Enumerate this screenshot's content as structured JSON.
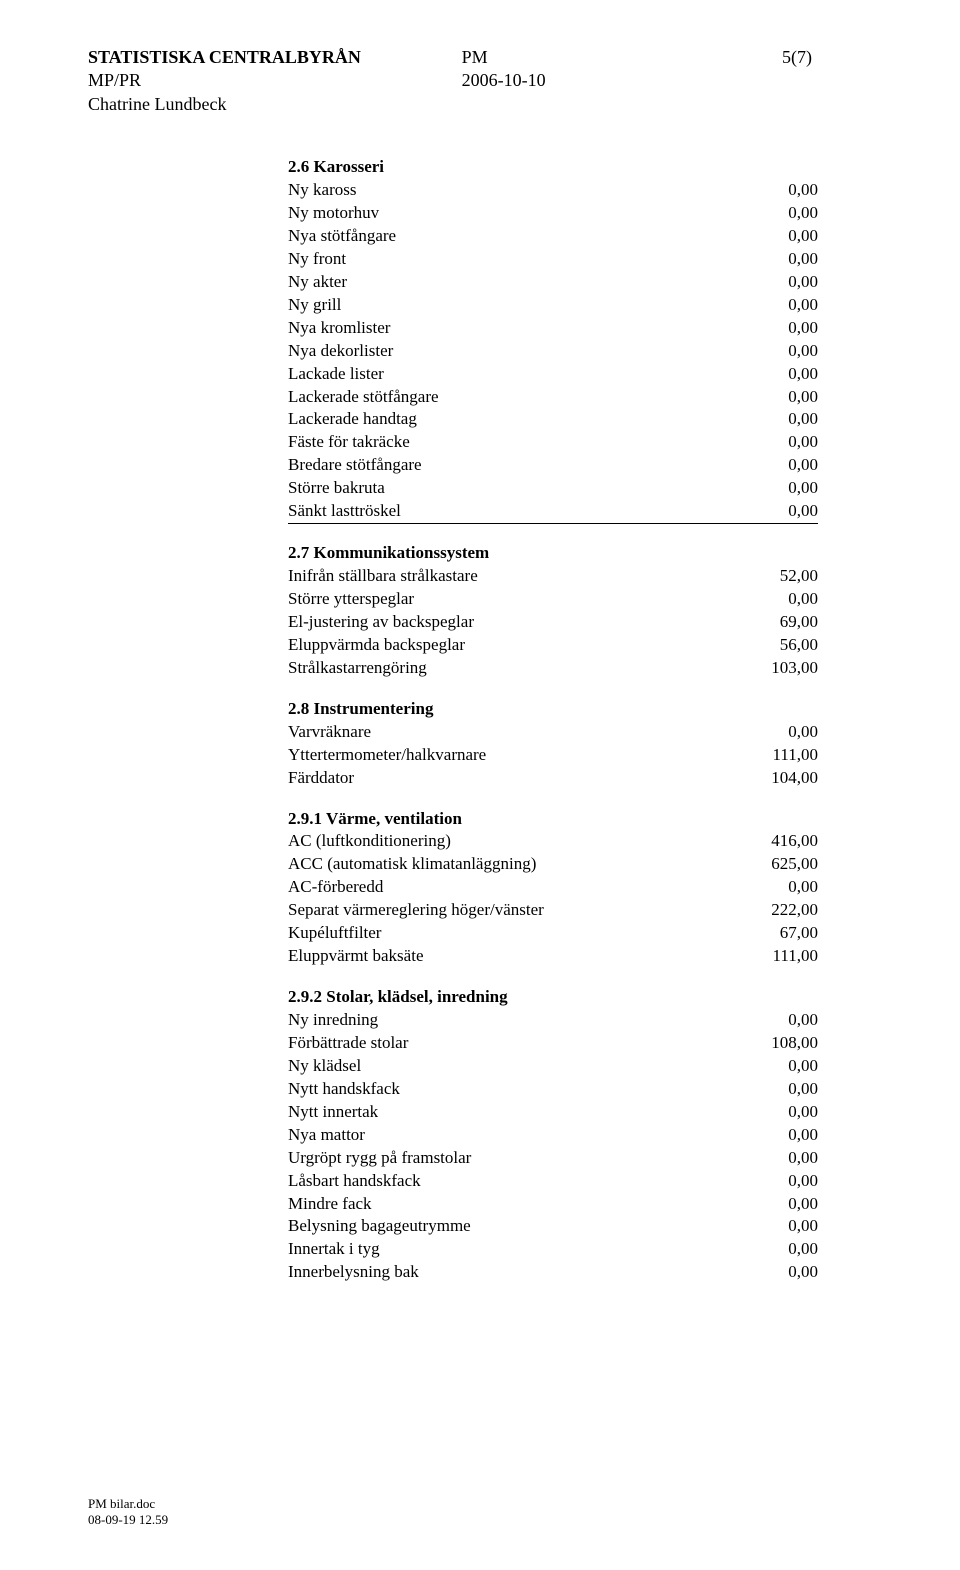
{
  "header": {
    "org": "STATISTISKA CENTRALBYRÅN",
    "dept": "MP/PR",
    "author": "Chatrine Lundbeck",
    "doc_type": "PM",
    "date": "2006-10-10",
    "page": "5(7)"
  },
  "sections": [
    {
      "title": "2.6  Karosseri",
      "rows": [
        {
          "label": "Ny kaross",
          "value": "0,00"
        },
        {
          "label": "Ny motorhuv",
          "value": "0,00"
        },
        {
          "label": "Nya stötfångare",
          "value": "0,00"
        },
        {
          "label": "Ny front",
          "value": "0,00"
        },
        {
          "label": "Ny akter",
          "value": "0,00"
        },
        {
          "label": "Ny grill",
          "value": "0,00"
        },
        {
          "label": "Nya kromlister",
          "value": "0,00"
        },
        {
          "label": "Nya dekorlister",
          "value": "0,00"
        },
        {
          "label": "Lackade lister",
          "value": "0,00"
        },
        {
          "label": "Lackerade stötfångare",
          "value": "0,00"
        },
        {
          "label": "Lackerade handtag",
          "value": "0,00"
        },
        {
          "label": "Fäste för takräcke",
          "value": "0,00"
        },
        {
          "label": "Bredare stötfångare",
          "value": "0,00"
        },
        {
          "label": "Större bakruta",
          "value": "0,00"
        },
        {
          "label": "Sänkt lasttröskel",
          "value": "0,00",
          "underline": true
        }
      ]
    },
    {
      "title": "2.7  Kommunikationssystem",
      "rows": [
        {
          "label": "Inifrån ställbara strålkastare",
          "value": "52,00"
        },
        {
          "label": "Större ytterspeglar",
          "value": "0,00"
        },
        {
          "label": "El-justering av backspeglar",
          "value": "69,00"
        },
        {
          "label": "Eluppvärmda backspeglar",
          "value": "56,00"
        },
        {
          "label": "Strålkastarrengöring",
          "value": "103,00"
        }
      ]
    },
    {
      "title": "2.8  Instrumentering",
      "rows": [
        {
          "label": "Varvräknare",
          "value": "0,00"
        },
        {
          "label": "Yttertermometer/halkvarnare",
          "value": "111,00"
        },
        {
          "label": "Färddator",
          "value": "104,00"
        }
      ]
    },
    {
      "title": "2.9.1 Värme, ventilation",
      "rows": [
        {
          "label": "AC (luftkonditionering)",
          "value": "416,00"
        },
        {
          "label": "ACC (automatisk klimatanläggning)",
          "value": "625,00"
        },
        {
          "label": "AC-förberedd",
          "value": "0,00"
        },
        {
          "label": "Separat värmereglering höger/vänster",
          "value": "222,00"
        },
        {
          "label": "Kupéluftfilter",
          "value": "67,00"
        },
        {
          "label": "Eluppvärmt baksäte",
          "value": "111,00"
        }
      ]
    },
    {
      "title": "2.9.2 Stolar, klädsel, inredning",
      "rows": [
        {
          "label": "Ny inredning",
          "value": "0,00"
        },
        {
          "label": "Förbättrade stolar",
          "value": "108,00"
        },
        {
          "label": "Ny klädsel",
          "value": "0,00"
        },
        {
          "label": "Nytt handskfack",
          "value": "0,00"
        },
        {
          "label": "Nytt innertak",
          "value": "0,00"
        },
        {
          "label": "Nya mattor",
          "value": "0,00"
        },
        {
          "label": "Urgröpt rygg på framstolar",
          "value": "0,00"
        },
        {
          "label": "Låsbart handskfack",
          "value": "0,00"
        },
        {
          "label": "Mindre fack",
          "value": "0,00"
        },
        {
          "label": "Belysning bagageutrymme",
          "value": "0,00"
        },
        {
          "label": "Innertak i tyg",
          "value": "0,00"
        },
        {
          "label": "Innerbelysning bak",
          "value": "0,00"
        }
      ]
    }
  ],
  "footer": {
    "filename": "PM bilar.doc",
    "timestamp": "08-09-19 12.59"
  }
}
